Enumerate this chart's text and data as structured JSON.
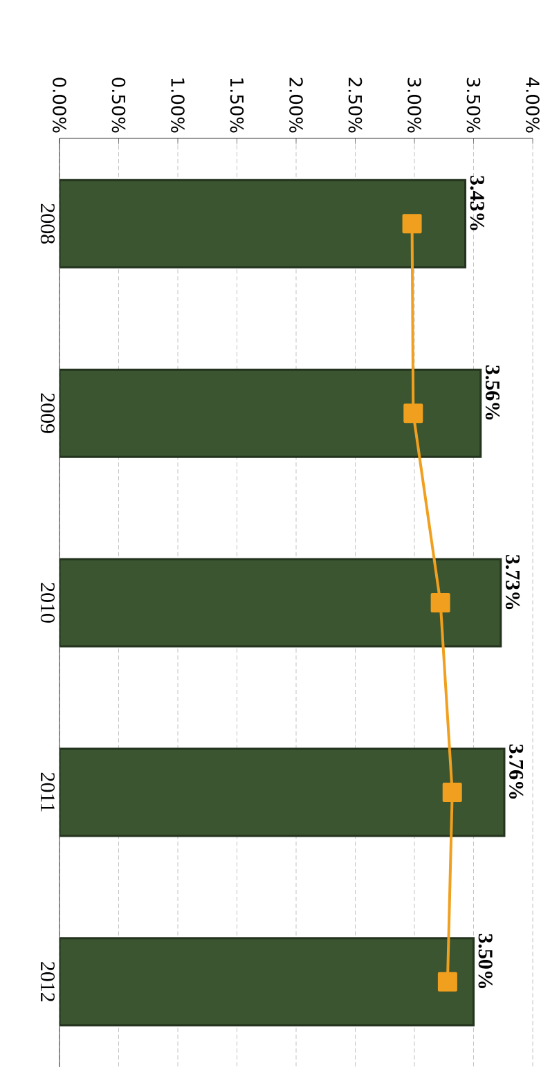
{
  "chart_data": {
    "type": "bar",
    "orientation": "horizontal",
    "categories": [
      "2008",
      "2009",
      "2010",
      "2011",
      "2012"
    ],
    "series": [
      {
        "color": "#3b5531",
        "values": [
          3.43,
          3.56,
          3.73,
          3.76,
          3.5
        ],
        "value_labels": [
          "3.43%",
          "3.56%",
          "3.73%",
          "3.76%",
          "3.50%"
        ]
      },
      {
        "type": "line",
        "color": "#f0a01e",
        "marker": "square",
        "values": [
          2.98,
          2.99,
          3.22,
          3.32,
          3.28
        ]
      }
    ],
    "xlim": [
      0,
      4
    ],
    "xticks": [
      {
        "value": 0,
        "label": "0.00%"
      },
      {
        "value": 0.5,
        "label": "0.50%"
      },
      {
        "value": 1,
        "label": "1.00%"
      },
      {
        "value": 1.5,
        "label": "1.50%"
      },
      {
        "value": 2,
        "label": "2.00%"
      },
      {
        "value": 2.5,
        "label": "2.50%"
      },
      {
        "value": 3,
        "label": "3.00%"
      },
      {
        "value": 3.5,
        "label": "3.50%"
      },
      {
        "value": 4,
        "label": "4.00%"
      }
    ],
    "grid": "x"
  }
}
